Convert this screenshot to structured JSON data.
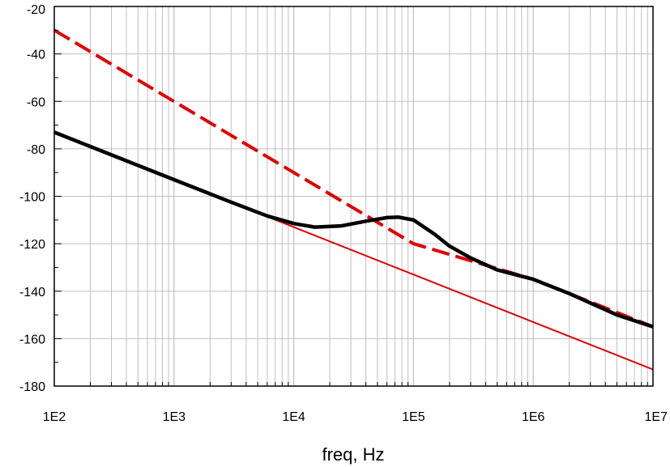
{
  "chart_data": {
    "type": "line",
    "xlabel": "freq, Hz",
    "ylabel": "",
    "x_scale": "log",
    "xlim": [
      100,
      10000000
    ],
    "ylim": [
      -180,
      -20
    ],
    "grid": true,
    "x_tick_labels": [
      "1E2",
      "1E3",
      "1E4",
      "1E5",
      "1E6",
      "1E7"
    ],
    "y_tick_labels": [
      "-20",
      "-40",
      "-60",
      "-80",
      "-100",
      "-120",
      "-140",
      "-160",
      "-180"
    ],
    "x_ticks": [
      100,
      1000,
      10000,
      100000,
      1000000,
      10000000
    ],
    "y_ticks": [
      -20,
      -40,
      -60,
      -80,
      -100,
      -120,
      -140,
      -160,
      -180
    ],
    "series": [
      {
        "color": "#e00000",
        "style": "dashed",
        "x": [
          100,
          1000,
          10000,
          100000,
          1000000,
          10000000
        ],
        "values": [
          -30,
          -60,
          -90,
          -120,
          -135,
          -155
        ]
      },
      {
        "color": "#e00000",
        "style": "solid-thin",
        "x": [
          100,
          1000,
          10000,
          100000,
          1000000,
          10000000
        ],
        "values": [
          -73,
          -93,
          -113,
          -133,
          -153,
          -173
        ]
      },
      {
        "color": "#000000",
        "style": "solid-thick",
        "x": [
          100,
          1000,
          3000,
          6000,
          10000,
          15000,
          25000,
          40000,
          60000,
          75000,
          100000,
          150000,
          200000,
          300000,
          500000,
          1000000,
          2000000,
          5000000,
          10000000
        ],
        "values": [
          -73,
          -93,
          -102.5,
          -108.3,
          -111.5,
          -113,
          -112.5,
          -110.5,
          -109,
          -108.8,
          -110,
          -116,
          -121,
          -126,
          -131,
          -135,
          -141,
          -150,
          -155
        ]
      }
    ]
  }
}
